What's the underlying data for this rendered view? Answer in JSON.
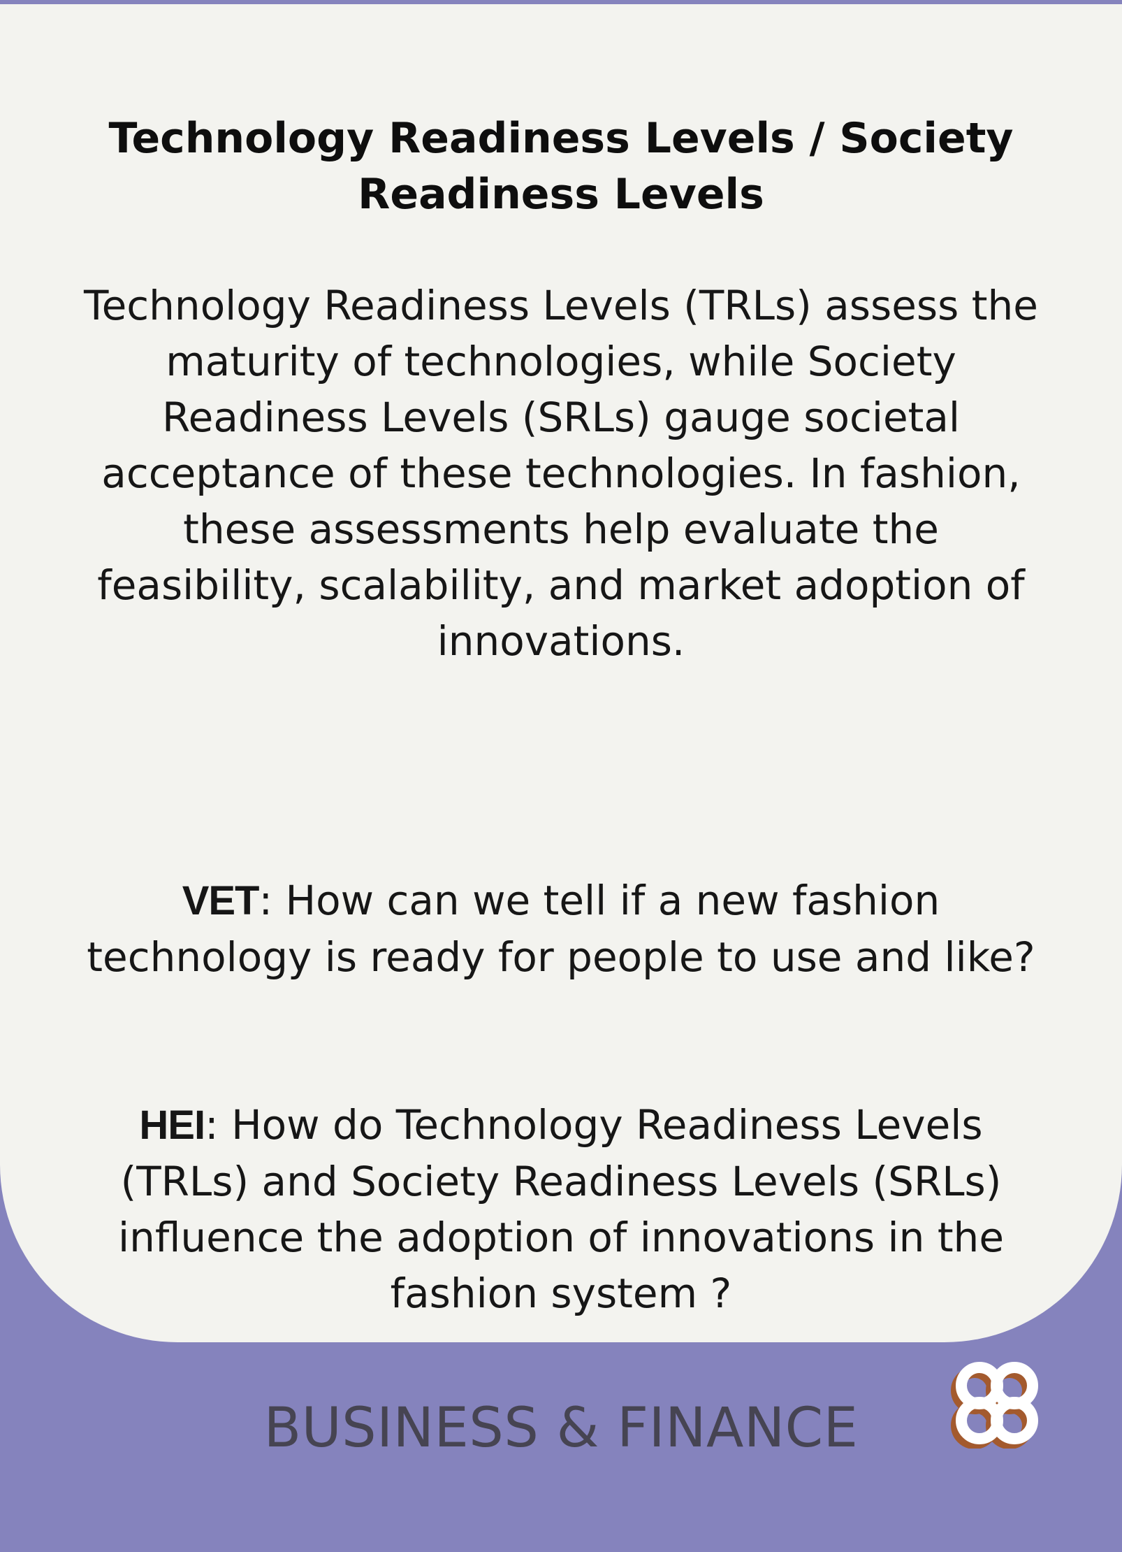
{
  "card": {
    "title": "Technology Readiness Levels / Society Readiness Levels",
    "intro": "Technology Readiness Levels (TRLs) assess the maturity of technologies, while Society Readiness Levels (SRLs) gauge societal acceptance  of these technologies. In fashion, these assessments help evaluate the feasibility, scalability, and market adoption of innovations.",
    "questions": [
      {
        "label": "VET",
        "text": ": How can we tell if a new fashion technology is ready for people to use and like?"
      },
      {
        "label": "HEI",
        "text": ": How do Technology Readiness Levels (TRLs) and Society Readiness Levels (SRLs) influence the adoption of innovations in the fashion system ?"
      }
    ]
  },
  "footer": {
    "category": "BUSINESS & FINANCE",
    "logo_icon": "quatrefoil-logo-icon"
  },
  "colors": {
    "background": "#8583bd",
    "card": "#f3f3ef",
    "category_text": "#464452",
    "logo_fill": "#ffffff",
    "logo_shadow": "#a35a2e"
  }
}
